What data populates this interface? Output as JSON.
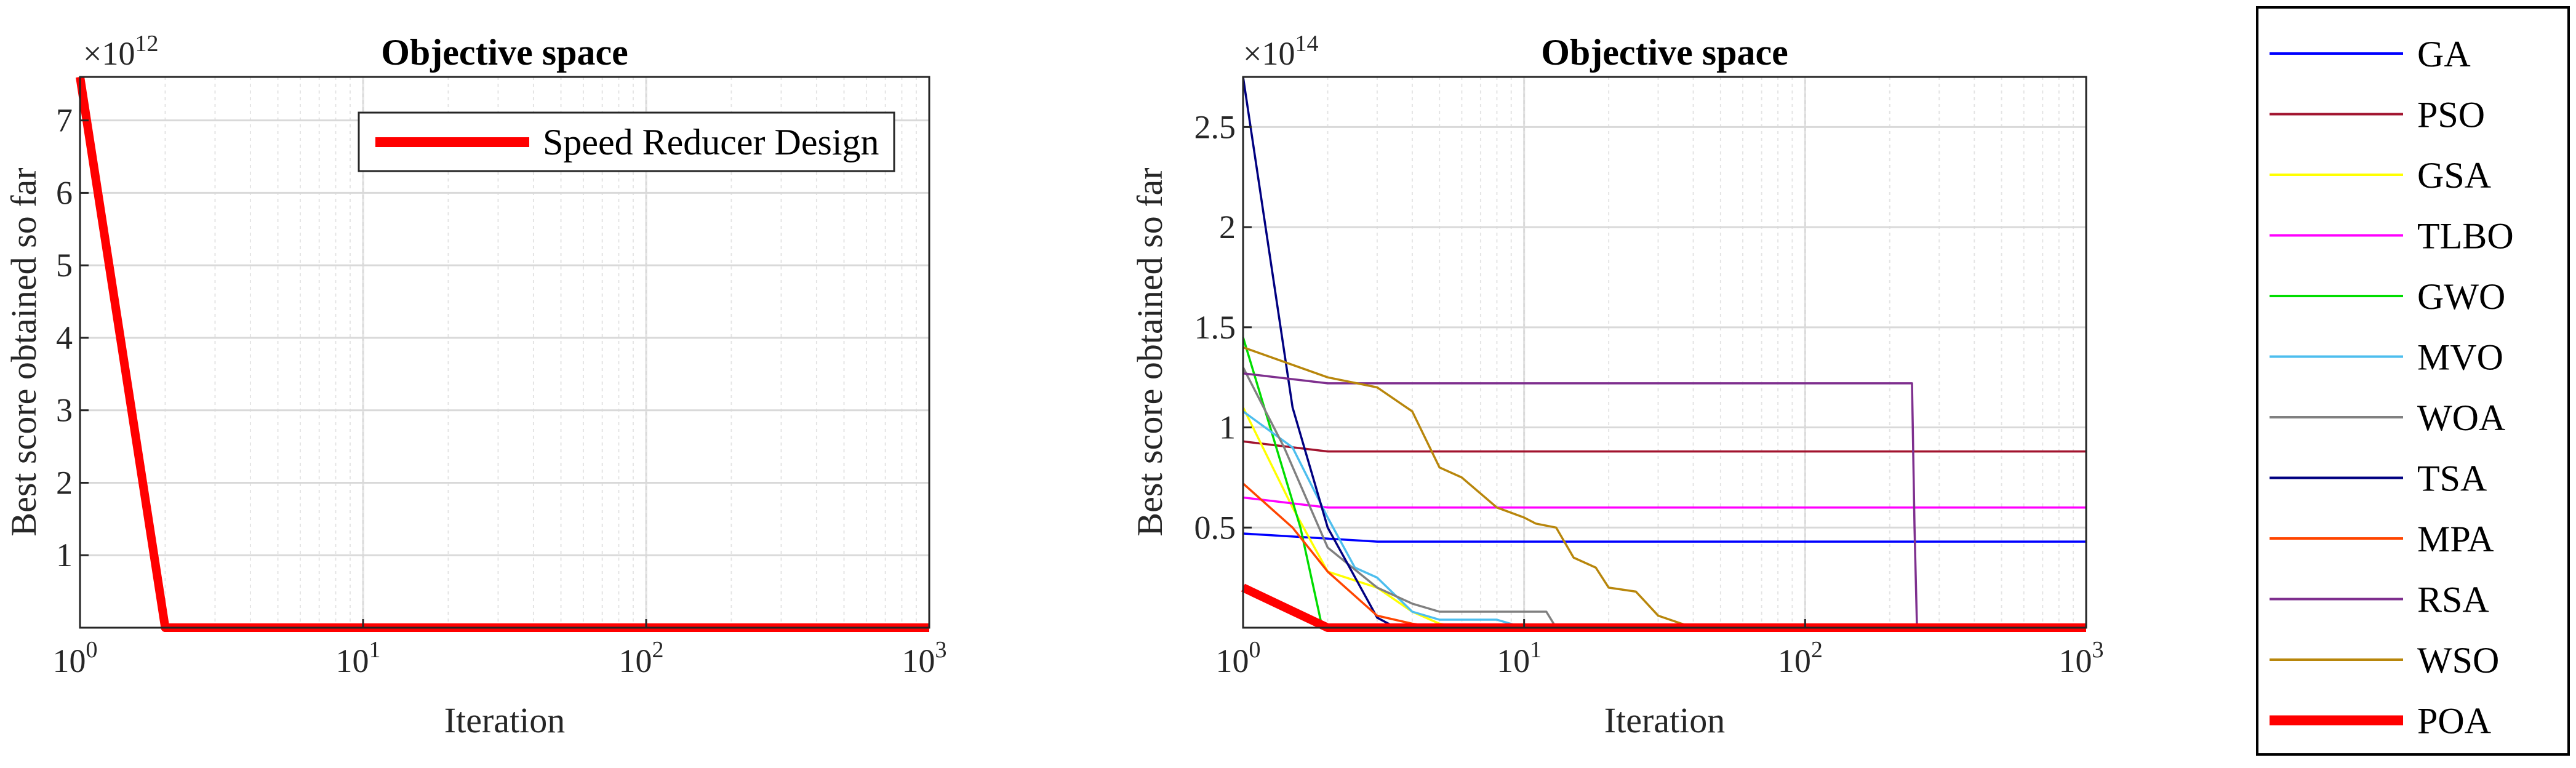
{
  "chart_data": [
    {
      "type": "line",
      "title": "Objective space",
      "xlabel": "Iteration",
      "ylabel": "Best score obtained so far",
      "xscale": "log",
      "xlim": [
        1,
        1000
      ],
      "ylim": [
        0,
        7.6
      ],
      "y_exponent_label": "×10",
      "y_exponent": "12",
      "xticks": [
        1,
        10,
        100,
        1000
      ],
      "xtick_base": "10",
      "xtick_exps": [
        "0",
        "1",
        "2",
        "3"
      ],
      "yticks": [
        1,
        2,
        3,
        4,
        5,
        6,
        7
      ],
      "ytick_labels": [
        "1",
        "2",
        "3",
        "4",
        "5",
        "6",
        "7"
      ],
      "grid": true,
      "legend_position": "top-right",
      "series": [
        {
          "name": "Speed Reducer Design",
          "color": "#ff0000",
          "width": "thick",
          "points": [
            [
              1,
              7.6
            ],
            [
              2,
              0.0
            ],
            [
              1000,
              0.0
            ]
          ]
        }
      ]
    },
    {
      "type": "line",
      "title": "Objective space",
      "xlabel": "Iteration",
      "ylabel": "Best score obtained so far",
      "xscale": "log",
      "xlim": [
        1,
        1000
      ],
      "ylim": [
        0,
        2.75
      ],
      "y_exponent_label": "×10",
      "y_exponent": "14",
      "xticks": [
        1,
        10,
        100,
        1000
      ],
      "xtick_base": "10",
      "xtick_exps": [
        "0",
        "1",
        "2",
        "3"
      ],
      "yticks": [
        0.5,
        1,
        1.5,
        2,
        2.5
      ],
      "ytick_labels": [
        "0.5",
        "1",
        "1.5",
        "2",
        "2.5"
      ],
      "grid": true,
      "legend_position": "outside-right",
      "series": [
        {
          "name": "GA",
          "color": "#0000ff",
          "width": "thin",
          "points": [
            [
              1,
              0.47
            ],
            [
              3,
              0.43
            ],
            [
              1000,
              0.43
            ]
          ]
        },
        {
          "name": "PSO",
          "color": "#a2142f",
          "width": "thin",
          "points": [
            [
              1,
              0.93
            ],
            [
              2,
              0.88
            ],
            [
              1000,
              0.88
            ]
          ]
        },
        {
          "name": "GSA",
          "color": "#ffff00",
          "width": "thin",
          "points": [
            [
              1,
              1.1
            ],
            [
              1.5,
              0.6
            ],
            [
              2,
              0.28
            ],
            [
              3,
              0.2
            ],
            [
              4,
              0.08
            ],
            [
              5,
              0.02
            ],
            [
              6,
              0.0
            ],
            [
              1000,
              0.0
            ]
          ]
        },
        {
          "name": "TLBO",
          "color": "#ff00ff",
          "width": "thin",
          "points": [
            [
              1,
              0.65
            ],
            [
              2,
              0.6
            ],
            [
              1000,
              0.6
            ]
          ]
        },
        {
          "name": "GWO",
          "color": "#00dd00",
          "width": "thin",
          "points": [
            [
              1,
              1.45
            ],
            [
              1.6,
              0.5
            ],
            [
              1.9,
              0.02
            ],
            [
              2,
              0.0
            ],
            [
              1000,
              0.0
            ]
          ]
        },
        {
          "name": "MVO",
          "color": "#4dbeee",
          "width": "thin",
          "points": [
            [
              1,
              1.08
            ],
            [
              1.5,
              0.9
            ],
            [
              2,
              0.55
            ],
            [
              2.5,
              0.3
            ],
            [
              3,
              0.25
            ],
            [
              4,
              0.08
            ],
            [
              5,
              0.04
            ],
            [
              8,
              0.04
            ],
            [
              10,
              0.0
            ],
            [
              1000,
              0.0
            ]
          ]
        },
        {
          "name": "WOA",
          "color": "#808080",
          "width": "thin",
          "points": [
            [
              1,
              1.3
            ],
            [
              1.4,
              0.9
            ],
            [
              2,
              0.4
            ],
            [
              3,
              0.2
            ],
            [
              4,
              0.12
            ],
            [
              5,
              0.08
            ],
            [
              8,
              0.08
            ],
            [
              12,
              0.08
            ],
            [
              13,
              0.0
            ],
            [
              1000,
              0.0
            ]
          ]
        },
        {
          "name": "TSA",
          "color": "#000080",
          "width": "thin",
          "points": [
            [
              1,
              2.75
            ],
            [
              1.5,
              1.1
            ],
            [
              2,
              0.5
            ],
            [
              3,
              0.05
            ],
            [
              3.5,
              0.0
            ],
            [
              1000,
              0.0
            ]
          ]
        },
        {
          "name": "MPA",
          "color": "#ff4500",
          "width": "thin",
          "points": [
            [
              1,
              0.72
            ],
            [
              1.5,
              0.5
            ],
            [
              2,
              0.28
            ],
            [
              3,
              0.06
            ],
            [
              4,
              0.02
            ],
            [
              5,
              0.0
            ],
            [
              1000,
              0.0
            ]
          ]
        },
        {
          "name": "RSA",
          "color": "#7e2f8e",
          "width": "thin",
          "points": [
            [
              1,
              1.27
            ],
            [
              2,
              1.22
            ],
            [
              240,
              1.22
            ],
            [
              245,
              0.5
            ],
            [
              250,
              0.0
            ],
            [
              1000,
              0.0
            ]
          ]
        },
        {
          "name": "WSO",
          "color": "#b8860b",
          "width": "thin",
          "points": [
            [
              1,
              1.4
            ],
            [
              2,
              1.25
            ],
            [
              3,
              1.2
            ],
            [
              4,
              1.08
            ],
            [
              5,
              0.8
            ],
            [
              6,
              0.75
            ],
            [
              8,
              0.6
            ],
            [
              10,
              0.55
            ],
            [
              11,
              0.52
            ],
            [
              13,
              0.5
            ],
            [
              15,
              0.35
            ],
            [
              18,
              0.3
            ],
            [
              20,
              0.2
            ],
            [
              25,
              0.18
            ],
            [
              30,
              0.06
            ],
            [
              40,
              0.0
            ],
            [
              1000,
              0.0
            ]
          ]
        },
        {
          "name": "POA",
          "color": "#ff0000",
          "width": "thick",
          "points": [
            [
              1,
              0.2
            ],
            [
              2,
              0.0
            ],
            [
              1000,
              0.0
            ]
          ]
        }
      ]
    }
  ]
}
